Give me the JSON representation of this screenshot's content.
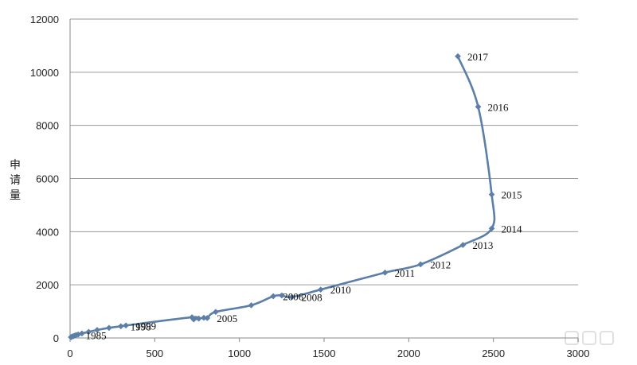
{
  "chart_data": {
    "type": "line",
    "title": "",
    "xlabel": "",
    "ylabel": "申请量",
    "xlim": [
      0,
      3000
    ],
    "ylim": [
      0,
      12000
    ],
    "x_ticks": [
      0,
      500,
      1000,
      1500,
      2000,
      2500,
      3000
    ],
    "y_ticks": [
      0,
      2000,
      4000,
      6000,
      8000,
      10000,
      12000
    ],
    "grid": "horizontal",
    "legend": "none",
    "series_color": "#5B7FA8",
    "points": [
      {
        "x": 5,
        "y": 30,
        "label": ""
      },
      {
        "x": 12,
        "y": 50,
        "label": ""
      },
      {
        "x": 20,
        "y": 70,
        "label": ""
      },
      {
        "x": 28,
        "y": 90,
        "label": ""
      },
      {
        "x": 36,
        "y": 110,
        "label": "1985"
      },
      {
        "x": 48,
        "y": 130,
        "label": ""
      },
      {
        "x": 70,
        "y": 170,
        "label": ""
      },
      {
        "x": 110,
        "y": 230,
        "label": ""
      },
      {
        "x": 160,
        "y": 300,
        "label": ""
      },
      {
        "x": 230,
        "y": 380,
        "label": ""
      },
      {
        "x": 300,
        "y": 440,
        "label": "1998"
      },
      {
        "x": 330,
        "y": 470,
        "label": "1999"
      },
      {
        "x": 720,
        "y": 780,
        "label": ""
      },
      {
        "x": 730,
        "y": 700,
        "label": ""
      },
      {
        "x": 760,
        "y": 730,
        "label": ""
      },
      {
        "x": 790,
        "y": 760,
        "label": ""
      },
      {
        "x": 810,
        "y": 750,
        "label": "2005"
      },
      {
        "x": 860,
        "y": 980,
        "label": ""
      },
      {
        "x": 1070,
        "y": 1230,
        "label": ""
      },
      {
        "x": 1200,
        "y": 1570,
        "label": "2006"
      },
      {
        "x": 1250,
        "y": 1600,
        "label": ""
      },
      {
        "x": 1310,
        "y": 1540,
        "label": "2008"
      },
      {
        "x": 1480,
        "y": 1820,
        "label": "2010"
      },
      {
        "x": 1860,
        "y": 2460,
        "label": "2011"
      },
      {
        "x": 2070,
        "y": 2770,
        "label": "2012"
      },
      {
        "x": 2320,
        "y": 3500,
        "label": "2013"
      },
      {
        "x": 2490,
        "y": 4120,
        "label": "2014"
      },
      {
        "x": 2490,
        "y": 5400,
        "label": "2015"
      },
      {
        "x": 2410,
        "y": 8700,
        "label": "2016"
      },
      {
        "x": 2290,
        "y": 10600,
        "label": "2017"
      }
    ]
  }
}
